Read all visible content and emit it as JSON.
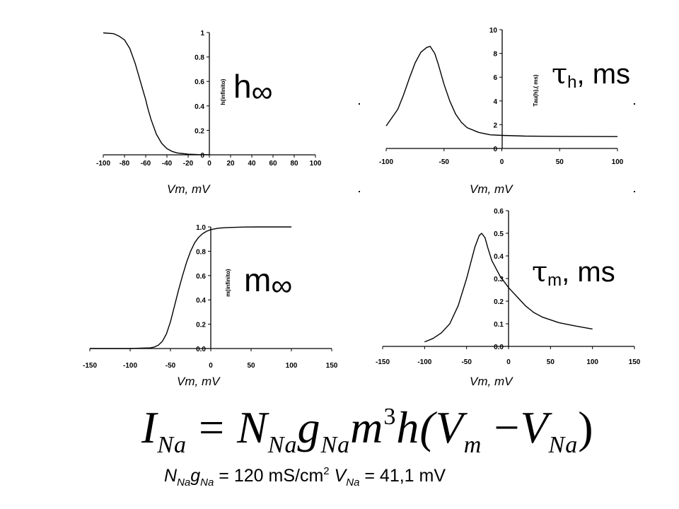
{
  "chart_data": [
    {
      "type": "line",
      "panel_label": "h∞",
      "ylabel": "h(infinito)",
      "xlabel": "Vm, mV",
      "xlim": [
        -100,
        100
      ],
      "ylim": [
        0,
        1
      ],
      "x_ticks": [
        -100,
        -80,
        -60,
        -40,
        -20,
        0,
        20,
        40,
        60,
        80,
        100
      ],
      "y_ticks": [
        0,
        0.2,
        0.4,
        0.6,
        0.8,
        1
      ],
      "y_tick_labels": [
        "0",
        "0.2",
        "0.4",
        "0.6",
        "0.8",
        "1"
      ],
      "series": [
        {
          "x": [
            -100,
            -90,
            -85,
            -80,
            -75,
            -70,
            -65,
            -62,
            -60,
            -58,
            -55,
            -50,
            -45,
            -40,
            -35,
            -30,
            -20,
            -10,
            0
          ],
          "values": [
            0.997,
            0.99,
            0.97,
            0.94,
            0.87,
            0.75,
            0.6,
            0.51,
            0.45,
            0.38,
            0.29,
            0.17,
            0.095,
            0.05,
            0.027,
            0.015,
            0.005,
            0.002,
            0.001
          ]
        }
      ]
    },
    {
      "type": "line",
      "panel_label": "τh, ms",
      "ylabel": "Tau(h),( ms)",
      "xlabel": "Vm, mV",
      "xlim": [
        -100,
        100
      ],
      "ylim": [
        0,
        10
      ],
      "x_ticks": [
        -100,
        -50,
        0,
        50,
        100
      ],
      "y_ticks": [
        0,
        2,
        4,
        6,
        8,
        10
      ],
      "y_tick_labels": [
        "0",
        "2",
        "4",
        "6",
        "8",
        "10"
      ],
      "series": [
        {
          "x": [
            -100,
            -90,
            -85,
            -80,
            -75,
            -70,
            -65,
            -62,
            -58,
            -55,
            -50,
            -45,
            -40,
            -35,
            -30,
            -20,
            -10,
            0,
            20,
            50,
            100
          ],
          "values": [
            1.9,
            3.3,
            4.5,
            5.9,
            7.2,
            8.1,
            8.5,
            8.6,
            8.0,
            7.1,
            5.4,
            4.0,
            2.9,
            2.2,
            1.75,
            1.35,
            1.15,
            1.1,
            1.04,
            1.02,
            1.0
          ]
        }
      ]
    },
    {
      "type": "line",
      "panel_label": "m∞",
      "ylabel": "m(infinito)",
      "xlabel": "Vm, mV",
      "xlim": [
        -150,
        150
      ],
      "ylim": [
        0,
        1
      ],
      "x_ticks": [
        -150,
        -100,
        -50,
        0,
        50,
        100,
        150
      ],
      "y_ticks": [
        0,
        0.2,
        0.4,
        0.6,
        0.8,
        1
      ],
      "y_tick_labels": [
        "0.0",
        "0.2",
        "0.4",
        "0.6",
        "0.8",
        "1.0"
      ],
      "series": [
        {
          "x": [
            -150,
            -100,
            -75,
            -70,
            -65,
            -60,
            -55,
            -50,
            -45,
            -40,
            -35,
            -30,
            -25,
            -20,
            -15,
            -10,
            -5,
            0,
            10,
            20,
            40,
            60,
            80,
            100
          ],
          "values": [
            0,
            0,
            0.005,
            0.012,
            0.028,
            0.06,
            0.12,
            0.22,
            0.35,
            0.48,
            0.6,
            0.71,
            0.8,
            0.87,
            0.915,
            0.945,
            0.965,
            0.978,
            0.99,
            0.995,
            0.999,
            1,
            1,
            1
          ]
        }
      ]
    },
    {
      "type": "line",
      "panel_label": "τm, ms",
      "xlabel": "Vm, mV",
      "xlim": [
        -150,
        150
      ],
      "ylim": [
        0,
        0.6
      ],
      "x_ticks": [
        -150,
        -100,
        -50,
        0,
        50,
        100,
        150
      ],
      "y_ticks": [
        0,
        0.1,
        0.2,
        0.3,
        0.4,
        0.5,
        0.6
      ],
      "y_tick_labels": [
        "0.0",
        "0.1",
        "0.2",
        "0.3",
        "0.4",
        "0.5",
        "0.6"
      ],
      "series": [
        {
          "x": [
            -100,
            -90,
            -80,
            -70,
            -60,
            -50,
            -45,
            -40,
            -35,
            -32,
            -28,
            -25,
            -20,
            -10,
            0,
            10,
            20,
            30,
            40,
            60,
            80,
            100
          ],
          "values": [
            0.02,
            0.035,
            0.06,
            0.1,
            0.18,
            0.3,
            0.37,
            0.44,
            0.49,
            0.5,
            0.48,
            0.44,
            0.38,
            0.31,
            0.26,
            0.22,
            0.18,
            0.15,
            0.13,
            0.105,
            0.09,
            0.077
          ]
        }
      ]
    }
  ],
  "equation": {
    "main": {
      "I": "I",
      "I_sub": "Na",
      "equals": "=",
      "N": "N",
      "N_sub": "Na",
      "g": "g",
      "g_sub": "Na",
      "m": "m",
      "m_sup": "3",
      "h": "h(",
      "V1": "V",
      "V1_sub": "m",
      "minus": "−",
      "V2": "V",
      "V2_sub": "Na",
      "close": ")"
    },
    "params": {
      "N": "N",
      "N_sub": "Na",
      "g": "g",
      "g_sub": "Na",
      "value1": " = 120 mS/cm",
      "value1_sup": "2",
      "V": " V",
      "V_sub": "Na",
      "value2": " = 41,1 mV"
    }
  }
}
